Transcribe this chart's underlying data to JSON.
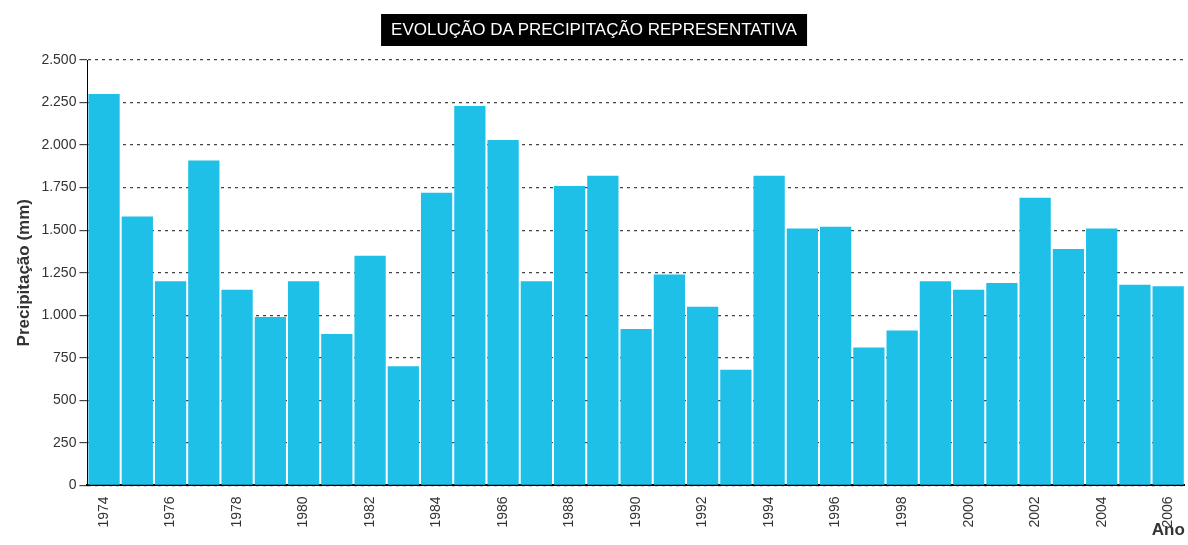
{
  "chart_data": {
    "type": "bar",
    "title": "EVOLUÇÃO DA PRECIPITAÇÃO REPRESENTATIVA",
    "xlabel": "Ano",
    "ylabel": "Precipitação (mm)",
    "categories": [
      "1974",
      null,
      "1976",
      null,
      "1978",
      null,
      "1980",
      null,
      "1982",
      null,
      "1984",
      null,
      "1986",
      null,
      "1988",
      null,
      "1990",
      null,
      "1992",
      null,
      "1994",
      null,
      "1996",
      null,
      "1998",
      null,
      "2000",
      null,
      "2002",
      null,
      "2004",
      null,
      "2006"
    ],
    "values": [
      2300,
      1580,
      1200,
      1910,
      1150,
      990,
      1200,
      890,
      1350,
      700,
      1720,
      2230,
      2030,
      1200,
      1760,
      1820,
      920,
      1240,
      1050,
      680,
      1820,
      1510,
      1520,
      810,
      910,
      1200,
      1150,
      1190,
      1690,
      1390,
      1510,
      1180,
      1170
    ],
    "color": "#1ec0e8",
    "ylim": [
      0,
      2500
    ],
    "yticks": [
      0,
      250,
      500,
      750,
      {
        "value": 1000,
        "label": "1.000"
      },
      {
        "value": 1250,
        "label": "1.250"
      },
      {
        "value": 1500,
        "label": "1.500"
      },
      {
        "value": 1750,
        "label": "1.750"
      },
      {
        "value": 2000,
        "label": "2.000"
      },
      {
        "value": 2250,
        "label": "2.250"
      },
      {
        "value": 2500,
        "label": "2.500"
      }
    ],
    "grid": "y",
    "legend": false
  }
}
